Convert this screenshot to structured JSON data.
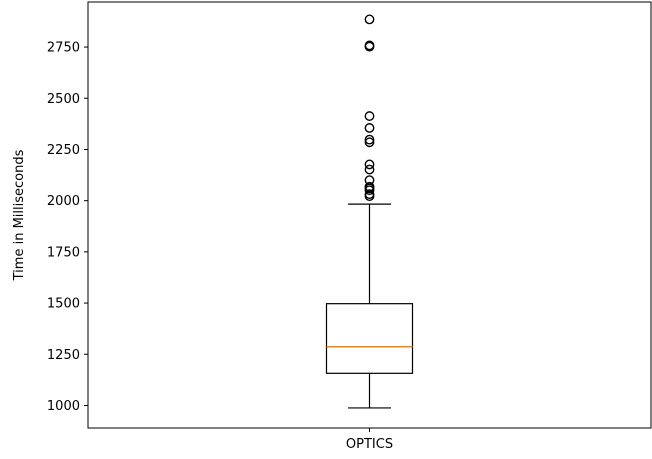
{
  "chart_data": {
    "type": "boxplot",
    "title": "",
    "xlabel": "",
    "ylabel": "Time in Milliseconds",
    "categories": [
      "OPTICS"
    ],
    "ylim": [
      890,
      2970
    ],
    "yticks": [
      1000,
      1250,
      1500,
      1750,
      2000,
      2250,
      2500,
      2750
    ],
    "grid": false,
    "boxes": [
      {
        "category": "OPTICS",
        "whisker_low": 988,
        "q1": 1157,
        "median": 1287,
        "q3": 1497,
        "whisker_high": 1983,
        "outliers": [
          2022,
          2032,
          2051,
          2060,
          2068,
          2100,
          2152,
          2177,
          2285,
          2298,
          2355,
          2413,
          2752,
          2758,
          2885
        ]
      }
    ],
    "colors": {
      "box": "#000000",
      "median": "#ff7f0e",
      "outlier_edge": "#000000"
    }
  }
}
